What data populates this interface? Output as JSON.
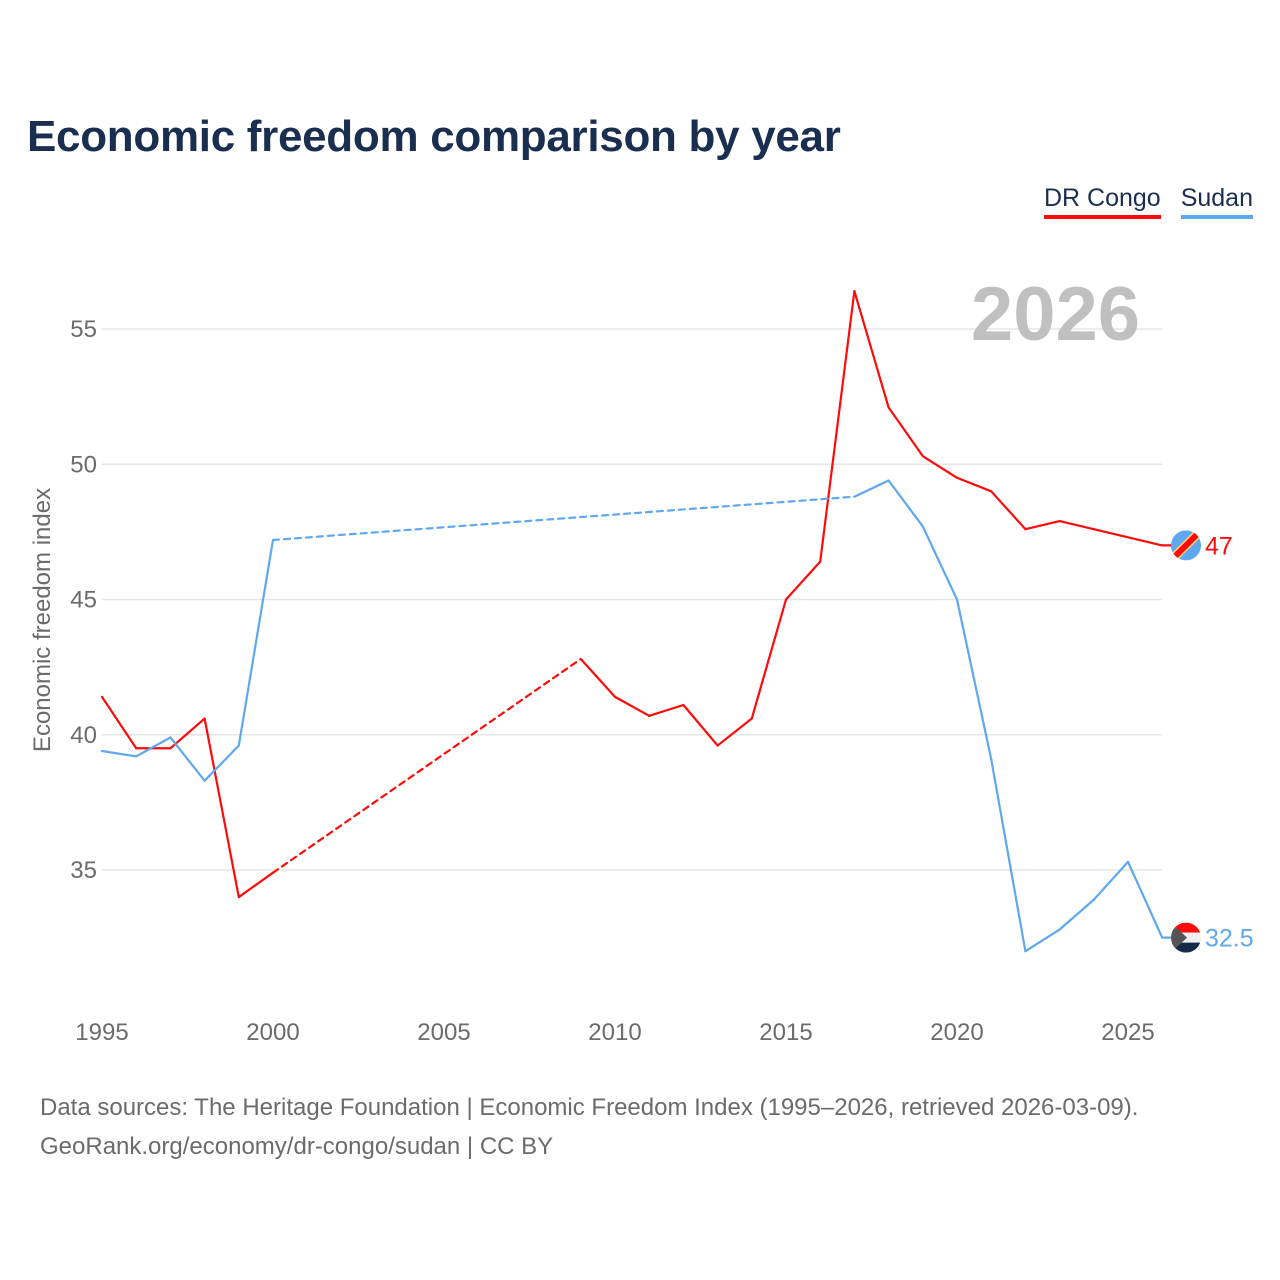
{
  "title": "Economic freedom comparison by year",
  "legend": [
    {
      "name": "DR Congo",
      "color": "#ff0a0a"
    },
    {
      "name": "Sudan",
      "color": "#5fa8ef"
    }
  ],
  "year_label": "2026",
  "source_line1": "Data sources: The Heritage Foundation | Economic Freedom Index (1995–2026, retrieved 2026-03-09).",
  "source_line2": "GeoRank.org/economy/dr-congo/sudan | CC BY",
  "chart_data": {
    "type": "line",
    "title": "Economic freedom comparison by year",
    "xlabel": "",
    "ylabel": "Economic freedom index",
    "xlim": [
      1995,
      2026
    ],
    "ylim": [
      31,
      57.5
    ],
    "xticks": [
      1995,
      2000,
      2005,
      2010,
      2015,
      2020,
      2025
    ],
    "yticks": [
      35,
      40,
      45,
      50,
      55
    ],
    "grid": true,
    "legend_position": "top-right",
    "series": [
      {
        "name": "DR Congo",
        "color": "#ff0a0a",
        "end_label": "47",
        "x": [
          1995,
          1996,
          1997,
          1998,
          1999,
          2000,
          2009,
          2010,
          2011,
          2012,
          2013,
          2014,
          2015,
          2016,
          2017,
          2018,
          2019,
          2020,
          2021,
          2022,
          2023,
          2024,
          2025,
          2026
        ],
        "values": [
          41.4,
          39.5,
          39.5,
          40.6,
          34.0,
          34.9,
          42.8,
          41.4,
          40.7,
          41.1,
          39.6,
          40.6,
          45.0,
          46.4,
          56.4,
          52.1,
          50.3,
          49.5,
          49.0,
          47.6,
          47.9,
          47.6,
          47.3,
          47.0
        ],
        "gaps": [
          [
            2000,
            2009
          ]
        ]
      },
      {
        "name": "Sudan",
        "color": "#5fa8ef",
        "end_label": "32.5",
        "x": [
          1995,
          1996,
          1997,
          1998,
          1999,
          2000,
          2017,
          2018,
          2019,
          2020,
          2021,
          2022,
          2023,
          2024,
          2025,
          2026
        ],
        "values": [
          39.4,
          39.2,
          39.9,
          38.3,
          39.6,
          47.2,
          48.8,
          49.4,
          47.7,
          45.0,
          39.1,
          32.0,
          32.8,
          33.9,
          35.3,
          32.5
        ],
        "gaps": [
          [
            2000,
            2017
          ]
        ]
      }
    ]
  }
}
